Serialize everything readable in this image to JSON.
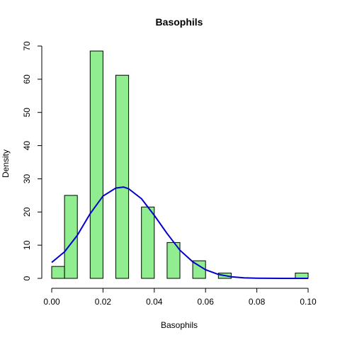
{
  "chart_data": {
    "type": "bar",
    "title": "Basophils",
    "xlabel": "Basophils",
    "ylabel": "Density",
    "xlim": [
      0,
      0.1
    ],
    "ylim": [
      0,
      70
    ],
    "x_ticks": [
      0.0,
      0.02,
      0.04,
      0.06,
      0.08,
      0.1
    ],
    "x_tick_labels": [
      "0.00",
      "0.02",
      "0.04",
      "0.06",
      "0.08",
      "0.10"
    ],
    "y_ticks": [
      0,
      10,
      20,
      30,
      40,
      50,
      60,
      70
    ],
    "y_tick_labels": [
      "0",
      "10",
      "20",
      "30",
      "40",
      "50",
      "60",
      "70"
    ],
    "bar_color": "#90ee90",
    "bar_stroke": "#000000",
    "curve_color": "#0000cd",
    "bins": [
      {
        "start": 0.0,
        "end": 0.005,
        "density": 3.6
      },
      {
        "start": 0.005,
        "end": 0.01,
        "density": 25.0
      },
      {
        "start": 0.015,
        "end": 0.02,
        "density": 68.5
      },
      {
        "start": 0.025,
        "end": 0.03,
        "density": 61.2
      },
      {
        "start": 0.035,
        "end": 0.04,
        "density": 21.5
      },
      {
        "start": 0.045,
        "end": 0.05,
        "density": 10.8
      },
      {
        "start": 0.055,
        "end": 0.06,
        "density": 5.3
      },
      {
        "start": 0.065,
        "end": 0.07,
        "density": 1.6
      },
      {
        "start": 0.095,
        "end": 0.1,
        "density": 1.6
      }
    ],
    "density_curve": {
      "x": [
        0.0,
        0.005,
        0.01,
        0.015,
        0.02,
        0.025,
        0.028,
        0.03,
        0.035,
        0.04,
        0.045,
        0.05,
        0.055,
        0.06,
        0.065,
        0.07,
        0.075,
        0.08,
        0.085,
        0.09,
        0.095,
        0.1
      ],
      "y": [
        4.8,
        8.0,
        13.0,
        19.5,
        24.8,
        27.2,
        27.5,
        27.0,
        24.0,
        19.0,
        13.5,
        8.5,
        5.0,
        2.6,
        1.2,
        0.5,
        0.15,
        0.05,
        0.02,
        0.01,
        0.01,
        0.01
      ]
    }
  }
}
